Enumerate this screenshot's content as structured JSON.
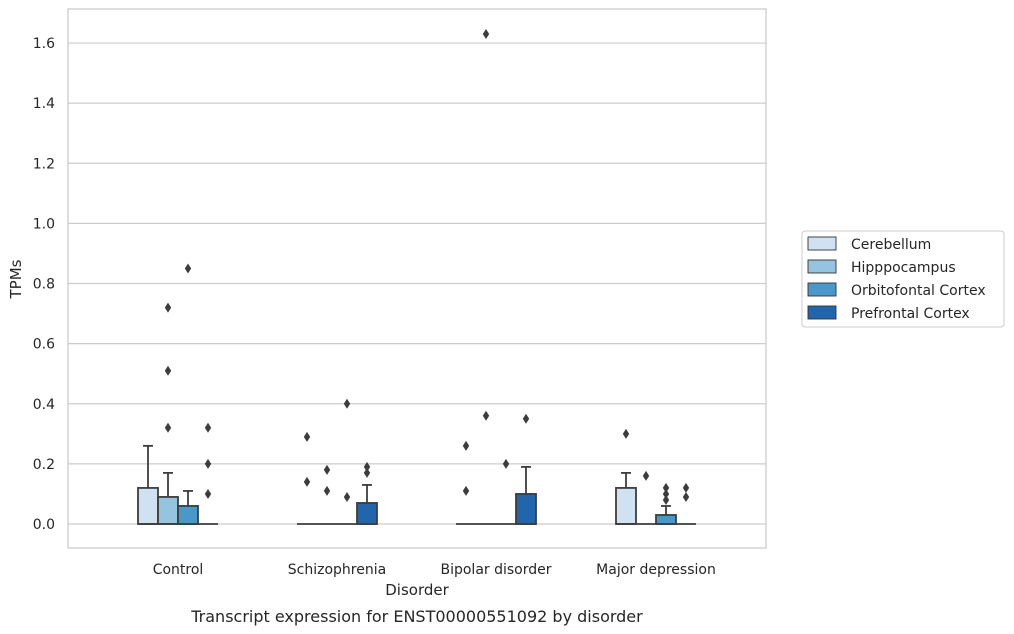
{
  "chart_data": {
    "type": "box",
    "caption": "Transcript expression for ENST00000551092 by disorder",
    "xlabel": "Disorder",
    "ylabel": "TPMs",
    "ylim": [
      -0.08,
      1.72
    ],
    "yticks": [
      "0.0",
      "0.2",
      "0.4",
      "0.6",
      "0.8",
      "1.0",
      "1.2",
      "1.4",
      "1.6"
    ],
    "grid": true,
    "legend_position": "right",
    "categories": [
      "Control",
      "Schizophrenia",
      "Bipolar disorder",
      "Major depression"
    ],
    "series": [
      {
        "name": "Cerebellum",
        "color": "#d0e1f2",
        "boxes": [
          {
            "q1": 0.0,
            "median": 0.0,
            "q3": 0.12,
            "whisker_low": 0.0,
            "whisker_high": 0.26,
            "outliers": []
          },
          {
            "q1": 0.0,
            "median": 0.0,
            "q3": 0.0,
            "whisker_low": 0.0,
            "whisker_high": 0.0,
            "outliers": [
              0.29,
              0.14
            ]
          },
          {
            "q1": 0.0,
            "median": 0.0,
            "q3": 0.0,
            "whisker_low": 0.0,
            "whisker_high": 0.0,
            "outliers": [
              0.26,
              0.11
            ]
          },
          {
            "q1": 0.0,
            "median": 0.0,
            "q3": 0.12,
            "whisker_low": 0.0,
            "whisker_high": 0.17,
            "outliers": [
              0.3
            ]
          }
        ]
      },
      {
        "name": "Hipppocampus",
        "color": "#94c4df",
        "boxes": [
          {
            "q1": 0.0,
            "median": 0.0,
            "q3": 0.09,
            "whisker_low": 0.0,
            "whisker_high": 0.17,
            "outliers": [
              0.72,
              0.51,
              0.32
            ]
          },
          {
            "q1": 0.0,
            "median": 0.0,
            "q3": 0.0,
            "whisker_low": 0.0,
            "whisker_high": 0.0,
            "outliers": [
              0.18,
              0.11
            ]
          },
          {
            "q1": 0.0,
            "median": 0.0,
            "q3": 0.0,
            "whisker_low": 0.0,
            "whisker_high": 0.0,
            "outliers": [
              1.63,
              0.36
            ]
          },
          {
            "q1": 0.0,
            "median": 0.0,
            "q3": 0.0,
            "whisker_low": 0.0,
            "whisker_high": 0.0,
            "outliers": [
              0.16
            ]
          }
        ]
      },
      {
        "name": "Orbitofontal Cortex",
        "color": "#4a98c9",
        "boxes": [
          {
            "q1": 0.0,
            "median": 0.0,
            "q3": 0.06,
            "whisker_low": 0.0,
            "whisker_high": 0.11,
            "outliers": [
              0.85
            ]
          },
          {
            "q1": 0.0,
            "median": 0.0,
            "q3": 0.0,
            "whisker_low": 0.0,
            "whisker_high": 0.0,
            "outliers": [
              0.4,
              0.09
            ]
          },
          {
            "q1": 0.0,
            "median": 0.0,
            "q3": 0.0,
            "whisker_low": 0.0,
            "whisker_high": 0.0,
            "outliers": [
              0.2
            ]
          },
          {
            "q1": 0.0,
            "median": 0.0,
            "q3": 0.03,
            "whisker_low": 0.0,
            "whisker_high": 0.06,
            "outliers": [
              0.12,
              0.1,
              0.08
            ]
          }
        ]
      },
      {
        "name": "Prefrontal Cortex",
        "color": "#2166ac",
        "boxes": [
          {
            "q1": 0.0,
            "median": 0.0,
            "q3": 0.0,
            "whisker_low": 0.0,
            "whisker_high": 0.0,
            "outliers": [
              0.32,
              0.2,
              0.1
            ]
          },
          {
            "q1": 0.0,
            "median": 0.0,
            "q3": 0.07,
            "whisker_low": 0.0,
            "whisker_high": 0.13,
            "outliers": [
              0.19,
              0.17
            ]
          },
          {
            "q1": 0.0,
            "median": 0.0,
            "q3": 0.1,
            "whisker_low": 0.0,
            "whisker_high": 0.19,
            "outliers": [
              0.35
            ]
          },
          {
            "q1": 0.0,
            "median": 0.0,
            "q3": 0.0,
            "whisker_low": 0.0,
            "whisker_high": 0.0,
            "outliers": [
              0.12,
              0.09
            ]
          }
        ]
      }
    ]
  }
}
